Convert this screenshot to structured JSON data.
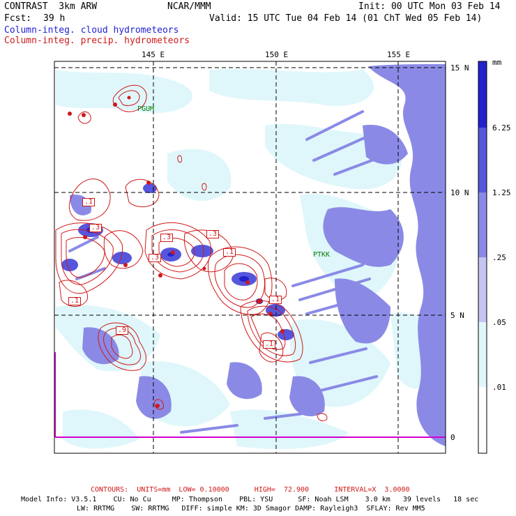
{
  "header": {
    "model": "CONTRAST  3km ARW",
    "forecast_label": "Fcst:",
    "forecast_hours": "39 h",
    "center": "NCAR/MMM",
    "init": "Init: 00 UTC Mon 03 Feb 14",
    "valid": "Valid: 15 UTC Tue 04 Feb 14 (01 ChT Wed 05 Feb 14)"
  },
  "legend_lines": {
    "cloud": "Column-integ. cloud hydrometeors",
    "precip": "Column-integ. precip. hydrometeors"
  },
  "axes": {
    "longitude_ticks": [
      "145 E",
      "150 E",
      "155 E"
    ],
    "latitude_ticks": [
      "15 N",
      "10 N",
      "5 N",
      "0"
    ]
  },
  "stations": [
    "PGUM",
    "PTKK"
  ],
  "contour_labels": [
    ".1",
    ".3",
    ".3",
    ".3",
    ".3",
    ".1",
    ".1",
    ".1",
    ".9",
    ".1"
  ],
  "colorbar": {
    "unit": "mm",
    "levels": [
      "6.25",
      "1.25",
      ".25",
      ".05",
      ".01"
    ],
    "colors": [
      "#2222cc",
      "#5656dd",
      "#8a8ae6",
      "#c4c4f2",
      "#dff7fb",
      "#ffffff"
    ]
  },
  "footer": {
    "contours": "CONTOURS:  UNITS=mm  LOW= 0.10000      HIGH=  72.900      INTERVAL=X  3.0000",
    "model_info": "Model Info: V3.5.1    CU: No Cu     MP: Thompson    PBL: YSU      SF: Noah LSM    3.0 km   39 levels   18 sec",
    "model_info2": "LW: RRTMG    SW: RRTMG   DIFF: simple KM: 3D Smagor DAMP: Rayleigh3  SFLAY: Rev MM5"
  }
}
